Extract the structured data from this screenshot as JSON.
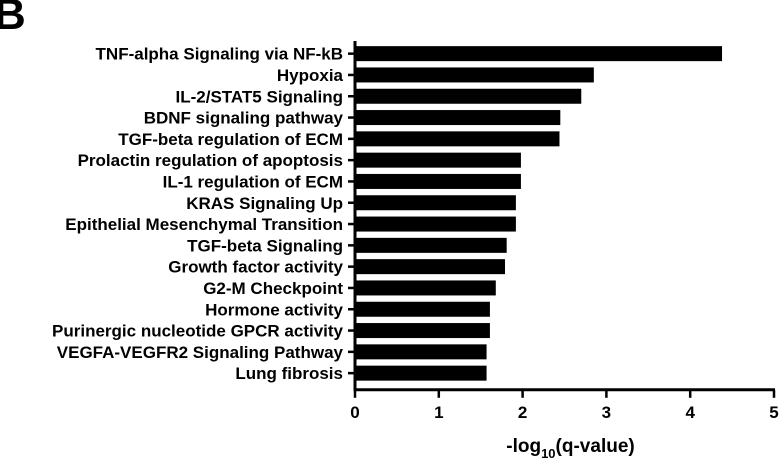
{
  "panel_label": "B",
  "chart_data": {
    "type": "bar",
    "orientation": "horizontal",
    "categories": [
      "TNF-alpha Signaling via NF-kB",
      "Hypoxia",
      "IL-2/STAT5 Signaling",
      "BDNF signaling pathway",
      "TGF-beta regulation of ECM",
      "Prolactin regulation of apoptosis",
      "IL-1 regulation of ECM",
      "KRAS Signaling Up",
      "Epithelial Mesenchymal Transition",
      "TGF-beta Signaling",
      "Growth factor activity",
      "G2-M Checkpoint",
      "Hormone activity",
      "Purinergic nucleotide GPCR activity",
      "VEGFA-VEGFR2 Signaling Pathway",
      "Lung fibrosis"
    ],
    "values": [
      4.38,
      2.85,
      2.7,
      2.45,
      2.44,
      1.98,
      1.98,
      1.92,
      1.92,
      1.81,
      1.79,
      1.68,
      1.61,
      1.61,
      1.57,
      1.57
    ],
    "xlabel_main": "-log",
    "xlabel_sub": "10",
    "xlabel_tail": "(q-value)",
    "xlim": [
      0,
      5
    ],
    "xticks": [
      "0",
      "1",
      "2",
      "3",
      "4",
      "5"
    ],
    "grid": false,
    "bar_color": "#000000"
  }
}
